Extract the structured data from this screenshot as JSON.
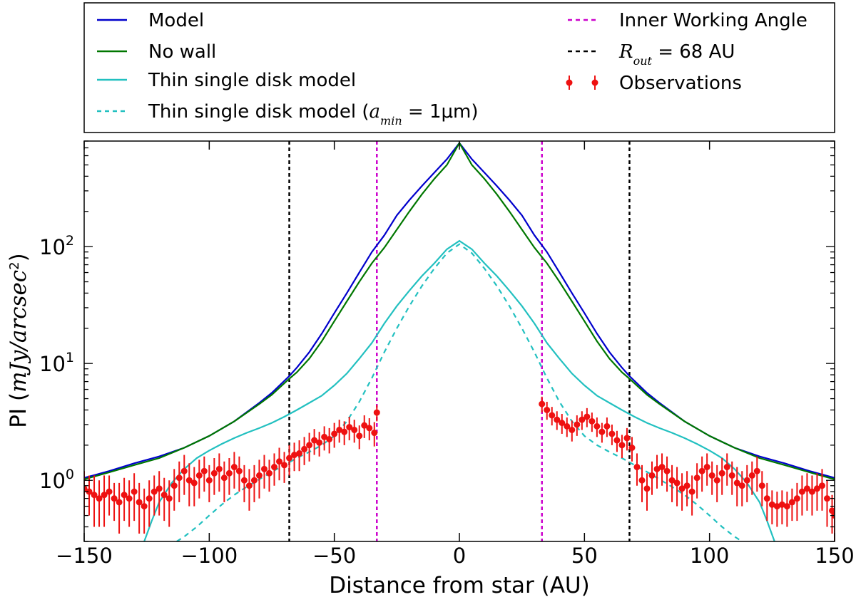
{
  "chart_data": {
    "type": "line",
    "title": "",
    "xlabel": "Distance from star (AU)",
    "ylabel": {
      "prefix": "PI (",
      "unit": "mJy/arcsec",
      "sup": "2",
      "suffix": ")"
    },
    "xscale": "linear",
    "yscale": "log",
    "xlim": [
      -150,
      150
    ],
    "ylim": [
      0.3,
      800
    ],
    "grid": false,
    "x_ticks": [
      -150,
      -100,
      -50,
      0,
      50,
      100,
      150
    ],
    "x_tick_labels": [
      "−150",
      "−100",
      "−50",
      "0",
      "50",
      "100",
      "150"
    ],
    "y_ticks": [
      {
        "value": 1,
        "base": "10",
        "exp": "0"
      },
      {
        "value": 10,
        "base": "10",
        "exp": "1"
      },
      {
        "value": 100,
        "base": "10",
        "exp": "2"
      }
    ],
    "legend": {
      "placement": "above plot",
      "entries": [
        {
          "key": "model",
          "label": "Model",
          "color": "#0000cc",
          "style": "solid"
        },
        {
          "key": "no_wall",
          "label": "No wall",
          "color": "#007700",
          "style": "solid"
        },
        {
          "key": "thin",
          "label": "Thin single disk model",
          "color": "#22c0c0",
          "style": "solid"
        },
        {
          "key": "thin_amin",
          "label_prefix": "Thin single disk model (",
          "label_math": "a",
          "label_sub": "min",
          "label_suffix": " = 1μm)",
          "color": "#22c0c0",
          "style": "dashed"
        },
        {
          "key": "iwa",
          "label": "Inner Working Angle",
          "color": "#cc00cc",
          "style": "dashed"
        },
        {
          "key": "rout",
          "label_math": "R",
          "label_sub": "out",
          "label_suffix": " = 68 AU",
          "color": "#000000",
          "style": "dashed"
        },
        {
          "key": "obs",
          "label": "Observations",
          "color": "#ee1111",
          "style": "errorbar"
        }
      ]
    },
    "vertical_lines": [
      {
        "key": "rout",
        "x": -68,
        "color": "#000000"
      },
      {
        "key": "iwa",
        "x": -33,
        "color": "#cc00cc"
      },
      {
        "key": "iwa",
        "x": 33,
        "color": "#cc00cc"
      },
      {
        "key": "rout",
        "x": 68,
        "color": "#000000"
      }
    ],
    "series": [
      {
        "name": "Model",
        "color": "#0000cc",
        "style": "solid",
        "points": [
          [
            0,
            770
          ],
          [
            5,
            560
          ],
          [
            10,
            430
          ],
          [
            15,
            330
          ],
          [
            20,
            250
          ],
          [
            25,
            185
          ],
          [
            30,
            125
          ],
          [
            35,
            90
          ],
          [
            40,
            60
          ],
          [
            45,
            40
          ],
          [
            50,
            27
          ],
          [
            55,
            18
          ],
          [
            60,
            12.5
          ],
          [
            65,
            9.2
          ],
          [
            68,
            7.8
          ],
          [
            75,
            5.6
          ],
          [
            80,
            4.6
          ],
          [
            90,
            3.2
          ],
          [
            100,
            2.4
          ],
          [
            110,
            1.9
          ],
          [
            120,
            1.6
          ],
          [
            130,
            1.4
          ],
          [
            140,
            1.2
          ],
          [
            150,
            1.05
          ]
        ]
      },
      {
        "name": "No wall",
        "color": "#007700",
        "style": "solid",
        "points": [
          [
            0,
            770
          ],
          [
            5,
            500
          ],
          [
            10,
            380
          ],
          [
            15,
            280
          ],
          [
            20,
            200
          ],
          [
            25,
            140
          ],
          [
            30,
            98
          ],
          [
            35,
            72
          ],
          [
            40,
            50
          ],
          [
            45,
            34
          ],
          [
            50,
            23
          ],
          [
            55,
            15.5
          ],
          [
            60,
            11
          ],
          [
            65,
            8.4
          ],
          [
            68,
            7.4
          ],
          [
            75,
            5.4
          ],
          [
            80,
            4.5
          ],
          [
            90,
            3.2
          ],
          [
            100,
            2.4
          ],
          [
            110,
            1.9
          ],
          [
            120,
            1.55
          ],
          [
            130,
            1.35
          ],
          [
            140,
            1.17
          ],
          [
            150,
            1.02
          ]
        ]
      },
      {
        "name": "Thin single disk model",
        "color": "#22c0c0",
        "style": "solid",
        "points": [
          [
            0,
            112
          ],
          [
            5,
            95
          ],
          [
            10,
            72
          ],
          [
            15,
            56
          ],
          [
            20,
            42
          ],
          [
            25,
            31
          ],
          [
            30,
            22
          ],
          [
            35,
            15
          ],
          [
            40,
            11
          ],
          [
            45,
            8.2
          ],
          [
            50,
            6.5
          ],
          [
            55,
            5.3
          ],
          [
            60,
            4.6
          ],
          [
            65,
            4
          ],
          [
            70,
            3.5
          ],
          [
            75,
            3.1
          ],
          [
            80,
            2.8
          ],
          [
            85,
            2.55
          ],
          [
            90,
            2.3
          ],
          [
            95,
            2.05
          ],
          [
            100,
            1.8
          ],
          [
            105,
            1.55
          ],
          [
            110,
            1.25
          ],
          [
            115,
            0.95
          ],
          [
            120,
            0.65
          ],
          [
            123,
            0.45
          ],
          [
            126,
            0.3
          ]
        ]
      },
      {
        "name": "Thin single disk model (a_min = 1μm)",
        "color": "#22c0c0",
        "style": "dashed",
        "points": [
          [
            0,
            105
          ],
          [
            5,
            88
          ],
          [
            10,
            65
          ],
          [
            15,
            46
          ],
          [
            20,
            31
          ],
          [
            25,
            20
          ],
          [
            30,
            12.5
          ],
          [
            35,
            7.5
          ],
          [
            40,
            4.7
          ],
          [
            45,
            3.2
          ],
          [
            50,
            2.4
          ],
          [
            55,
            2
          ],
          [
            60,
            1.75
          ],
          [
            65,
            1.55
          ],
          [
            70,
            1.35
          ],
          [
            75,
            1.18
          ],
          [
            80,
            1.02
          ],
          [
            85,
            0.88
          ],
          [
            90,
            0.75
          ],
          [
            95,
            0.62
          ],
          [
            100,
            0.5
          ],
          [
            105,
            0.4
          ],
          [
            110,
            0.33
          ],
          [
            113,
            0.3
          ]
        ]
      }
    ],
    "observations": [
      [
        -150,
        0.85,
        0.35
      ],
      [
        -148,
        0.8,
        0.3
      ],
      [
        -146,
        0.75,
        0.35
      ],
      [
        -144,
        0.7,
        0.3
      ],
      [
        -142,
        0.75,
        0.35
      ],
      [
        -140,
        0.8,
        0.3
      ],
      [
        -138,
        0.7,
        0.25
      ],
      [
        -136,
        0.65,
        0.3
      ],
      [
        -134,
        0.75,
        0.3
      ],
      [
        -132,
        0.7,
        0.3
      ],
      [
        -130,
        0.8,
        0.35
      ],
      [
        -128,
        0.65,
        0.3
      ],
      [
        -126,
        0.6,
        0.25
      ],
      [
        -124,
        0.7,
        0.3
      ],
      [
        -122,
        0.8,
        0.3
      ],
      [
        -120,
        0.85,
        0.35
      ],
      [
        -118,
        0.75,
        0.3
      ],
      [
        -116,
        0.7,
        0.3
      ],
      [
        -114,
        0.9,
        0.35
      ],
      [
        -112,
        1.05,
        0.4
      ],
      [
        -110,
        1.2,
        0.45
      ],
      [
        -108,
        1.0,
        0.4
      ],
      [
        -106,
        0.95,
        0.35
      ],
      [
        -104,
        1.1,
        0.4
      ],
      [
        -102,
        1.2,
        0.4
      ],
      [
        -100,
        1.0,
        0.35
      ],
      [
        -98,
        1.15,
        0.4
      ],
      [
        -96,
        1.25,
        0.45
      ],
      [
        -94,
        1.05,
        0.4
      ],
      [
        -92,
        1.15,
        0.4
      ],
      [
        -90,
        1.3,
        0.45
      ],
      [
        -88,
        1.2,
        0.4
      ],
      [
        -86,
        1.0,
        0.35
      ],
      [
        -84,
        0.9,
        0.35
      ],
      [
        -82,
        1.0,
        0.35
      ],
      [
        -80,
        1.1,
        0.4
      ],
      [
        -78,
        1.25,
        0.4
      ],
      [
        -76,
        1.15,
        0.35
      ],
      [
        -74,
        1.3,
        0.4
      ],
      [
        -72,
        1.45,
        0.45
      ],
      [
        -70,
        1.35,
        0.4
      ],
      [
        -68,
        1.55,
        0.45
      ],
      [
        -66,
        1.65,
        0.45
      ],
      [
        -64,
        1.7,
        0.5
      ],
      [
        -62,
        1.85,
        0.5
      ],
      [
        -60,
        2.0,
        0.55
      ],
      [
        -58,
        2.2,
        0.55
      ],
      [
        -56,
        2.1,
        0.5
      ],
      [
        -54,
        2.35,
        0.55
      ],
      [
        -52,
        2.25,
        0.55
      ],
      [
        -50,
        2.5,
        0.6
      ],
      [
        -48,
        2.7,
        0.6
      ],
      [
        -46,
        2.6,
        0.6
      ],
      [
        -44,
        2.85,
        0.65
      ],
      [
        -42,
        2.7,
        0.6
      ],
      [
        -40,
        2.4,
        0.55
      ],
      [
        -38,
        2.95,
        0.65
      ],
      [
        -36,
        2.8,
        0.6
      ],
      [
        -34,
        2.55,
        0.6
      ],
      [
        -33,
        3.8,
        0.6
      ],
      [
        33,
        4.5,
        0.7
      ],
      [
        35,
        4.0,
        0.7
      ],
      [
        37,
        3.6,
        0.65
      ],
      [
        39,
        3.3,
        0.6
      ],
      [
        41,
        3.1,
        0.6
      ],
      [
        43,
        2.9,
        0.55
      ],
      [
        45,
        2.7,
        0.55
      ],
      [
        47,
        3.0,
        0.6
      ],
      [
        49,
        3.3,
        0.6
      ],
      [
        51,
        3.5,
        0.65
      ],
      [
        53,
        3.2,
        0.6
      ],
      [
        55,
        2.9,
        0.55
      ],
      [
        57,
        2.6,
        0.5
      ],
      [
        59,
        2.9,
        0.55
      ],
      [
        61,
        2.5,
        0.5
      ],
      [
        63,
        2.2,
        0.45
      ],
      [
        65,
        2.0,
        0.45
      ],
      [
        67,
        2.3,
        0.5
      ],
      [
        69,
        1.9,
        0.45
      ],
      [
        71,
        1.3,
        0.4
      ],
      [
        73,
        1.0,
        0.35
      ],
      [
        75,
        0.85,
        0.3
      ],
      [
        77,
        1.1,
        0.35
      ],
      [
        79,
        1.25,
        0.4
      ],
      [
        81,
        1.3,
        0.4
      ],
      [
        83,
        1.2,
        0.4
      ],
      [
        85,
        1.0,
        0.35
      ],
      [
        87,
        0.95,
        0.35
      ],
      [
        89,
        0.85,
        0.3
      ],
      [
        91,
        0.9,
        0.3
      ],
      [
        93,
        0.8,
        0.3
      ],
      [
        95,
        1.05,
        0.35
      ],
      [
        97,
        1.2,
        0.4
      ],
      [
        99,
        1.3,
        0.4
      ],
      [
        101,
        1.1,
        0.35
      ],
      [
        103,
        1.0,
        0.35
      ],
      [
        105,
        1.15,
        0.4
      ],
      [
        107,
        1.3,
        0.4
      ],
      [
        109,
        1.1,
        0.35
      ],
      [
        111,
        0.95,
        0.35
      ],
      [
        113,
        0.9,
        0.3
      ],
      [
        115,
        1.0,
        0.35
      ],
      [
        117,
        1.1,
        0.35
      ],
      [
        119,
        1.2,
        0.4
      ],
      [
        121,
        0.9,
        0.3
      ],
      [
        123,
        0.7,
        0.25
      ],
      [
        125,
        0.62,
        0.2
      ],
      [
        127,
        0.6,
        0.2
      ],
      [
        129,
        0.62,
        0.2
      ],
      [
        131,
        0.6,
        0.2
      ],
      [
        133,
        0.65,
        0.2
      ],
      [
        135,
        0.7,
        0.25
      ],
      [
        137,
        0.8,
        0.3
      ],
      [
        139,
        0.85,
        0.3
      ],
      [
        141,
        0.8,
        0.3
      ],
      [
        143,
        0.85,
        0.3
      ],
      [
        145,
        0.9,
        0.35
      ],
      [
        147,
        0.7,
        0.3
      ],
      [
        149,
        0.55,
        0.2
      ],
      [
        150,
        0.5,
        0.2
      ]
    ]
  }
}
